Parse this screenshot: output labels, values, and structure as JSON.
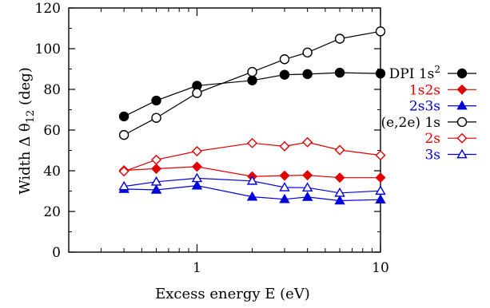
{
  "chart_data": {
    "type": "line",
    "xscale": "log",
    "xlabel": "Excess energy E (eV)",
    "ylabel": "Width Δ θ",
    "ylabel_sub": "12",
    "ylabel_unit": " (deg)",
    "xlim": [
      0.2,
      10
    ],
    "ylim": [
      0,
      120
    ],
    "xticks": [
      1,
      10
    ],
    "yticks": [
      0,
      20,
      40,
      60,
      80,
      100,
      120
    ],
    "grid": false,
    "legend_position": "right",
    "x": [
      0.4,
      0.6,
      1,
      2,
      3,
      4,
      6,
      10
    ],
    "series": [
      {
        "name": "DPI 1s",
        "name_sup": "2",
        "color": "#000000",
        "marker": "filled-circle",
        "values": [
          66.7,
          74.5,
          81.8,
          84.4,
          87.2,
          87.5,
          88.2,
          87.8
        ]
      },
      {
        "name": "1s2s",
        "color": "#e00000",
        "marker": "filled-diamond",
        "values": [
          40.2,
          41.0,
          42.0,
          37.2,
          37.6,
          37.8,
          36.6,
          36.6
        ]
      },
      {
        "name": "2s3s",
        "color": "#0000dd",
        "marker": "filled-triangle",
        "values": [
          31.0,
          30.6,
          32.7,
          27.2,
          26.0,
          27.1,
          25.3,
          25.8
        ]
      },
      {
        "name": "(e,2e) 1s",
        "color": "#000000",
        "marker": "open-circle",
        "values": [
          57.6,
          66.0,
          78.2,
          88.6,
          94.8,
          98.1,
          104.9,
          108.5
        ]
      },
      {
        "name": "2s",
        "color": "#e00000",
        "marker": "open-diamond",
        "values": [
          39.7,
          45.4,
          49.6,
          53.6,
          52.0,
          54.0,
          50.2,
          47.6
        ]
      },
      {
        "name": "3s",
        "color": "#0000dd",
        "marker": "open-triangle",
        "values": [
          32.3,
          34.6,
          36.3,
          35.0,
          31.8,
          31.7,
          29.1,
          30.1
        ]
      }
    ]
  }
}
